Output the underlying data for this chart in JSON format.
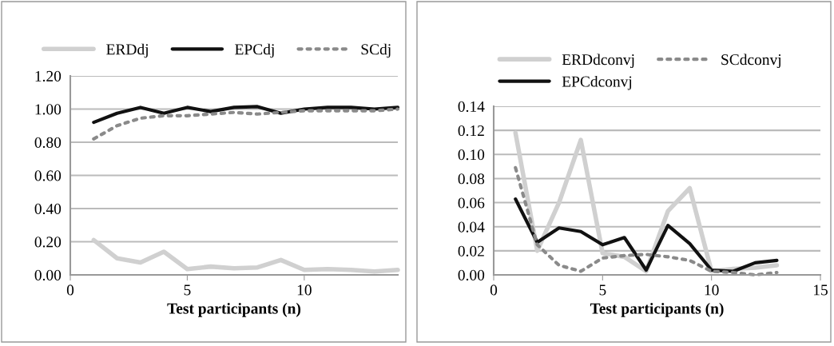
{
  "chart_data": [
    {
      "type": "line",
      "xlabel": "Test participants (n)",
      "x": [
        1,
        2,
        3,
        4,
        5,
        6,
        7,
        8,
        9,
        10,
        11,
        12,
        13,
        14
      ],
      "xlim": [
        0,
        14
      ],
      "xticks": [
        0,
        5,
        10
      ],
      "ylim": [
        0,
        1.2
      ],
      "yticks": [
        {
          "value": 0,
          "label": "0.00"
        },
        {
          "value": 0.2,
          "label": "0.20"
        },
        {
          "value": 0.4,
          "label": "0.40"
        },
        {
          "value": 0.6,
          "label": "0.60"
        },
        {
          "value": 0.8,
          "label": "0.80"
        },
        {
          "value": 1.0,
          "label": "1.00"
        },
        {
          "value": 1.2,
          "label": "1.20"
        }
      ],
      "grid": "y",
      "legend": "top",
      "marker": "none",
      "series": [
        {
          "name": "ERDdj",
          "color": "#d0d0d0",
          "line_style": "solid",
          "values": [
            0.21,
            0.1,
            0.075,
            0.14,
            0.035,
            0.05,
            0.04,
            0.045,
            0.09,
            0.03,
            0.035,
            0.03,
            0.02,
            0.03
          ]
        },
        {
          "name": "EPCdj",
          "color": "#111111",
          "line_style": "solid",
          "values": [
            0.92,
            0.975,
            1.01,
            0.975,
            1.01,
            0.985,
            1.01,
            1.015,
            0.975,
            1.0,
            1.01,
            1.01,
            1.0,
            1.01
          ]
        },
        {
          "name": "SCdj",
          "color": "#8a8a8a",
          "line_style": "dotted",
          "values": [
            0.82,
            0.9,
            0.945,
            0.96,
            0.96,
            0.97,
            0.98,
            0.97,
            0.98,
            0.99,
            0.99,
            0.99,
            0.99,
            1.0
          ]
        }
      ]
    },
    {
      "type": "line",
      "xlabel": "Test participants (n)",
      "x": [
        1,
        2,
        3,
        4,
        5,
        6,
        7,
        8,
        9,
        10,
        11,
        12,
        13
      ],
      "xlim": [
        0,
        15
      ],
      "xticks": [
        0,
        5,
        10,
        15
      ],
      "ylim": [
        0,
        0.14
      ],
      "yticks": [
        {
          "value": 0,
          "label": "0.00"
        },
        {
          "value": 0.02,
          "label": "0.02"
        },
        {
          "value": 0.04,
          "label": "0.04"
        },
        {
          "value": 0.06,
          "label": "0.06"
        },
        {
          "value": 0.08,
          "label": "0.08"
        },
        {
          "value": 0.1,
          "label": "0.10"
        },
        {
          "value": 0.12,
          "label": "0.12"
        },
        {
          "value": 0.14,
          "label": "0.14"
        }
      ],
      "grid": "y",
      "legend": "top",
      "marker": "none",
      "series": [
        {
          "name": "ERDdconvj",
          "color": "#d0d0d0",
          "line_style": "solid",
          "values": [
            0.118,
            0.02,
            0.06,
            0.112,
            0.018,
            0.015,
            0.003,
            0.053,
            0.072,
            0.003,
            0.005,
            0.006,
            0.008
          ]
        },
        {
          "name": "EPCdconvj",
          "color": "#111111",
          "line_style": "solid",
          "values": [
            0.063,
            0.027,
            0.039,
            0.036,
            0.025,
            0.031,
            0.004,
            0.041,
            0.026,
            0.004,
            0.003,
            0.01,
            0.012
          ]
        },
        {
          "name": "SCdconvj",
          "color": "#8a8a8a",
          "line_style": "dotted",
          "values": [
            0.089,
            0.025,
            0.008,
            0.003,
            0.014,
            0.016,
            0.017,
            0.015,
            0.012,
            0.003,
            0.002,
            0.0,
            0.002
          ]
        }
      ]
    }
  ]
}
